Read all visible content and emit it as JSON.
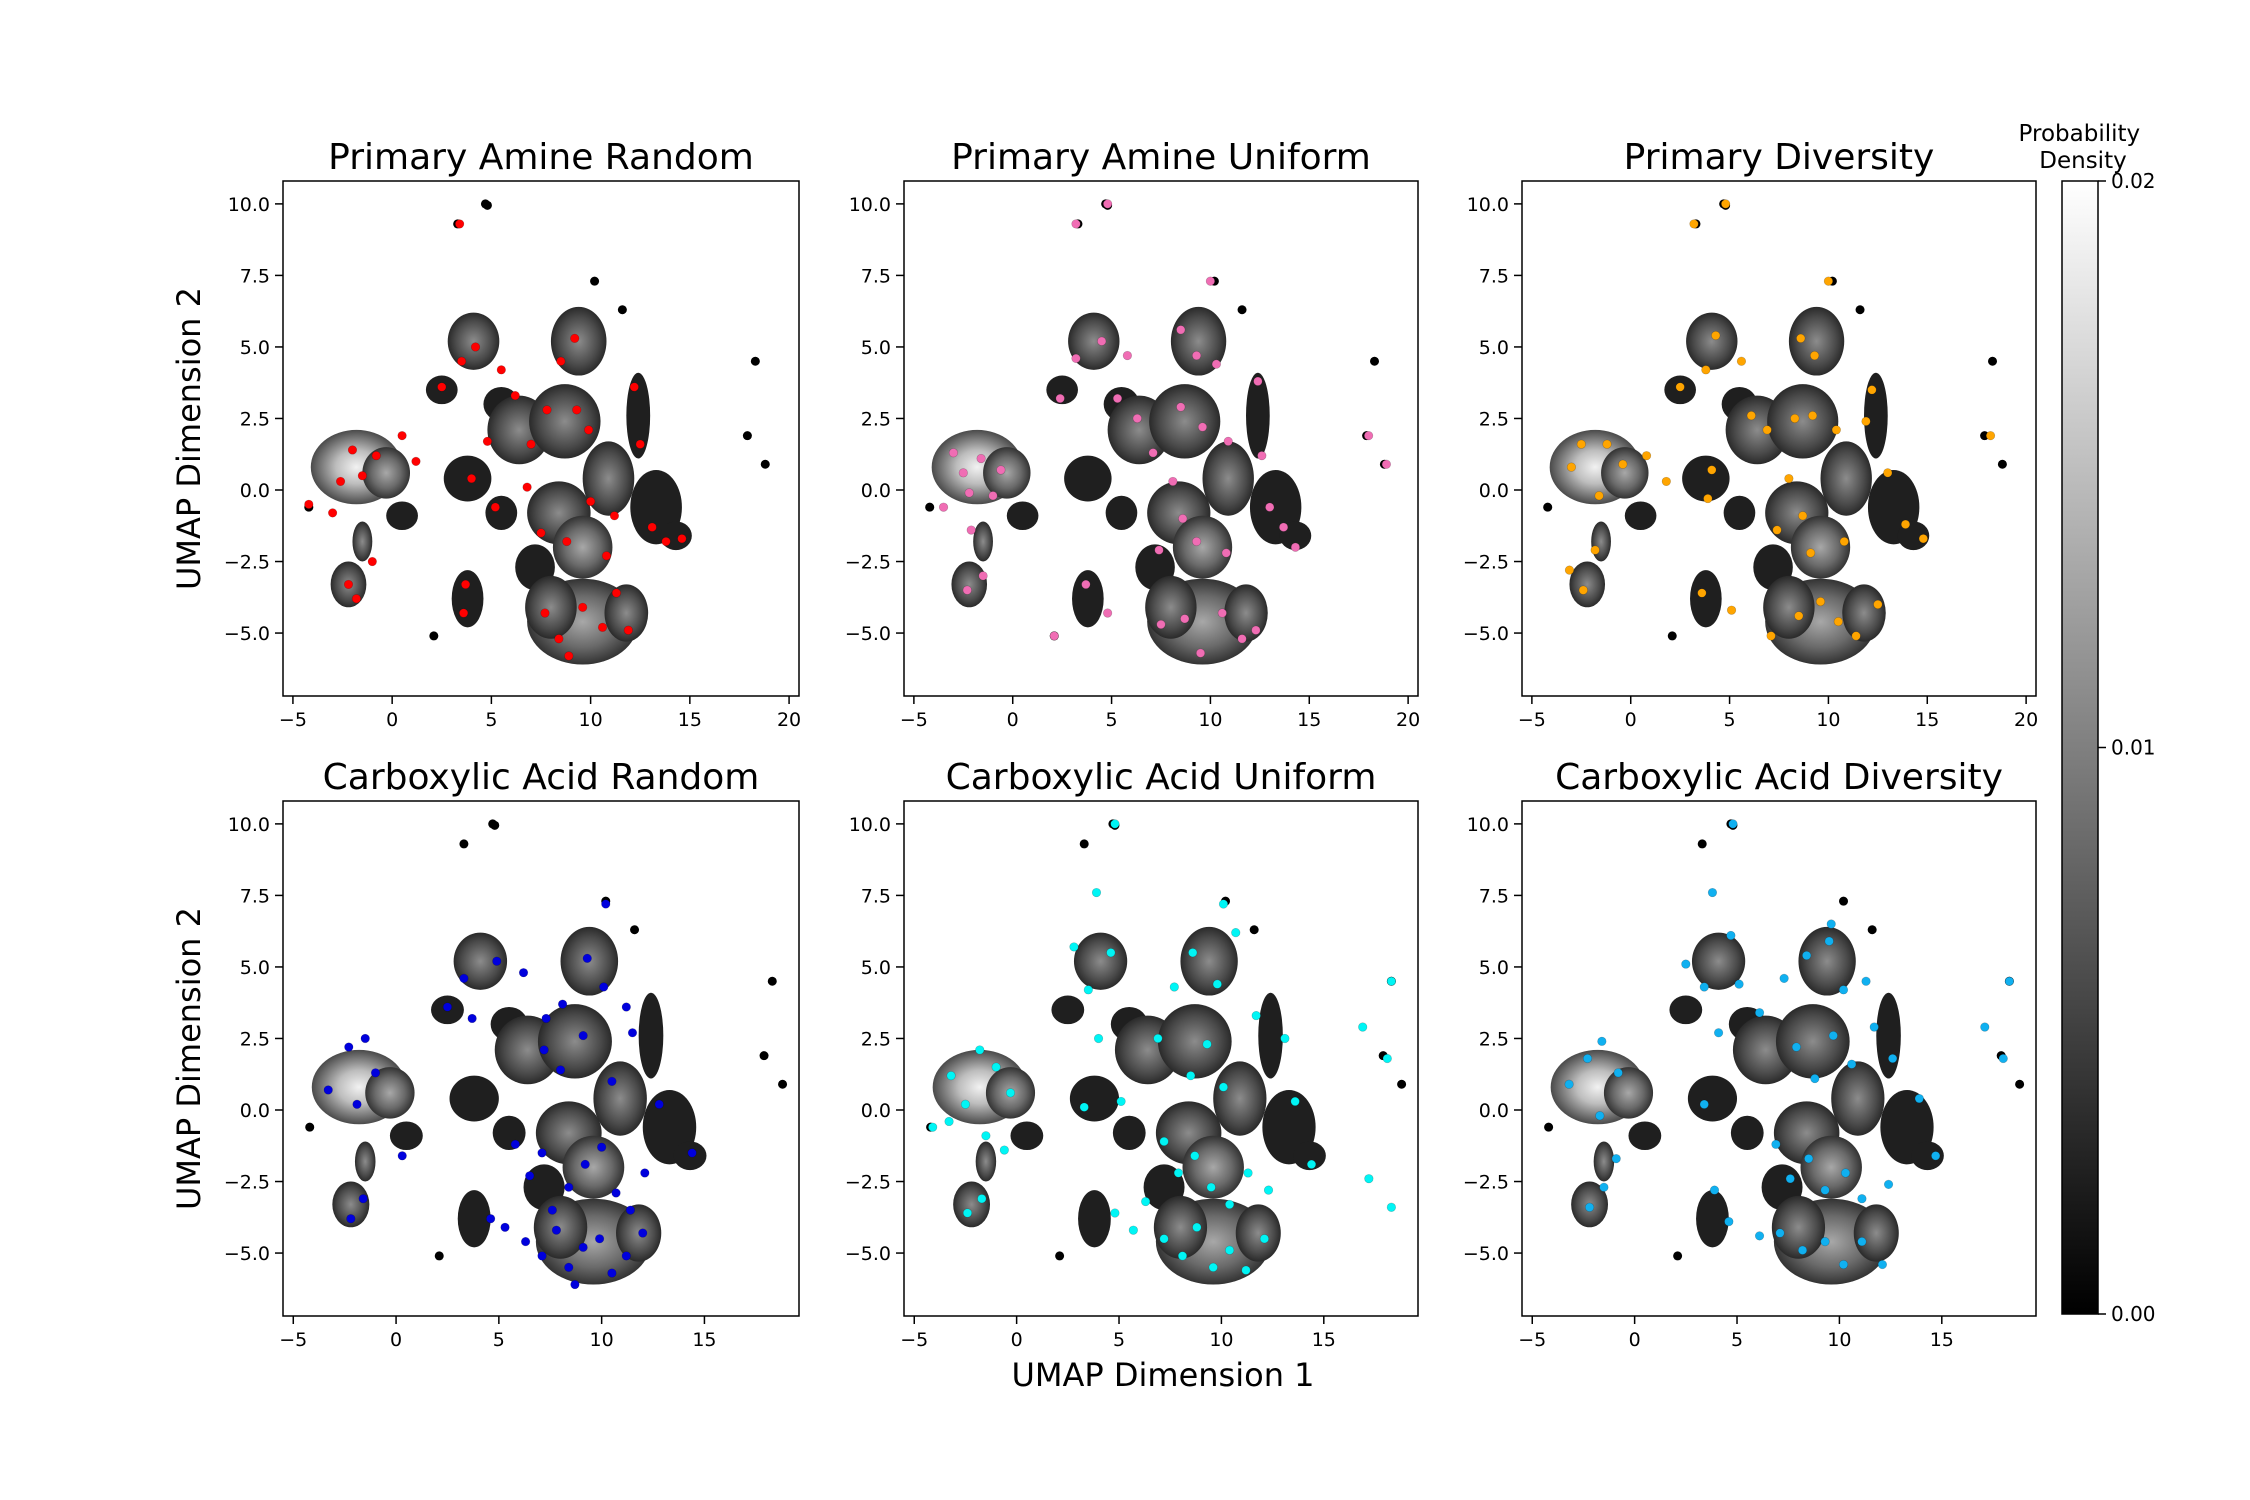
{
  "figure": {
    "xlabel": "UMAP Dimension 1",
    "ylabel": "UMAP Dimension 2",
    "colorbar": {
      "label": "Probability\nDensity",
      "ticks": [
        0.0,
        0.01,
        0.02
      ],
      "tick_labels": [
        "0.00",
        "0.01",
        "0.02"
      ],
      "range": [
        0.0,
        0.02
      ],
      "colormap": "gray"
    }
  },
  "chart_data": [
    {
      "type": "scatter",
      "title": "Primary Amine Random",
      "xlim": [
        -5.5,
        20.5
      ],
      "ylim": [
        -7.2,
        10.8
      ],
      "xticks": [
        -5,
        0,
        5,
        10,
        15,
        20
      ],
      "yticks": [
        -5.0,
        -2.5,
        0.0,
        2.5,
        5.0,
        7.5,
        10.0
      ],
      "ytick_labels": [
        "−5.0",
        "−2.5",
        "0.0",
        "2.5",
        "5.0",
        "7.5",
        "10.0"
      ],
      "xtick_labels": [
        "−5",
        "0",
        "5",
        "10",
        "15",
        "20"
      ],
      "show_ylabel": true,
      "show_xlabel": false,
      "highlight_color": "#ff0000",
      "sample_points": [
        [
          -2,
          1.4
        ],
        [
          -1.5,
          0.5
        ],
        [
          -2.6,
          0.3
        ],
        [
          -3,
          -0.8
        ],
        [
          -0.8,
          1.2
        ],
        [
          -2.2,
          -3.3
        ],
        [
          -1.8,
          -3.8
        ],
        [
          -1,
          -2.5
        ],
        [
          0.5,
          1.9
        ],
        [
          1.2,
          1
        ],
        [
          2.5,
          3.6
        ],
        [
          3.5,
          4.5
        ],
        [
          4.2,
          5
        ],
        [
          5.5,
          4.2
        ],
        [
          6.2,
          3.3
        ],
        [
          4.8,
          1.7
        ],
        [
          4,
          0.4
        ],
        [
          5.2,
          -0.6
        ],
        [
          7,
          1.6
        ],
        [
          7.8,
          2.8
        ],
        [
          8.5,
          4.5
        ],
        [
          9.2,
          5.3
        ],
        [
          9.9,
          2.1
        ],
        [
          10,
          -0.4
        ],
        [
          11.2,
          -0.9
        ],
        [
          8.8,
          -1.8
        ],
        [
          7.5,
          -1.5
        ],
        [
          10.8,
          -2.3
        ],
        [
          12.2,
          3.6
        ],
        [
          12.5,
          1.6
        ],
        [
          13.1,
          -1.3
        ],
        [
          13.8,
          -1.8
        ],
        [
          14.6,
          -1.7
        ],
        [
          3.7,
          -3.3
        ],
        [
          3.6,
          -4.3
        ],
        [
          7.7,
          -4.3
        ],
        [
          8.4,
          -5.2
        ],
        [
          9.6,
          -4.1
        ],
        [
          10.6,
          -4.8
        ],
        [
          11.9,
          -4.9
        ],
        [
          11.3,
          -3.6
        ],
        [
          8.9,
          -5.8
        ],
        [
          -4.2,
          -0.5
        ],
        [
          3.4,
          9.3
        ],
        [
          6.8,
          0.1
        ],
        [
          9.3,
          2.8
        ]
      ]
    },
    {
      "type": "scatter",
      "title": "Primary Amine Uniform",
      "xlim": [
        -5.5,
        20.5
      ],
      "ylim": [
        -7.2,
        10.8
      ],
      "xticks": [
        -5,
        0,
        5,
        10,
        15,
        20
      ],
      "yticks": [
        -5.0,
        -2.5,
        0.0,
        2.5,
        5.0,
        7.5,
        10.0
      ],
      "ytick_labels": [
        "−5.0",
        "−2.5",
        "0.0",
        "2.5",
        "5.0",
        "7.5",
        "10.0"
      ],
      "xtick_labels": [
        "−5",
        "0",
        "5",
        "10",
        "15",
        "20"
      ],
      "show_ylabel": false,
      "show_xlabel": false,
      "highlight_color": "#f06db4",
      "sample_points": [
        [
          -3,
          1.3
        ],
        [
          -2.5,
          0.6
        ],
        [
          -1.6,
          1.1
        ],
        [
          -0.6,
          0.7
        ],
        [
          -2.2,
          -0.1
        ],
        [
          -1,
          -0.2
        ],
        [
          -3.5,
          -0.6
        ],
        [
          -2.1,
          -1.4
        ],
        [
          -2.3,
          -3.5
        ],
        [
          -1.5,
          -3
        ],
        [
          2.4,
          3.2
        ],
        [
          3.2,
          4.6
        ],
        [
          4.5,
          5.2
        ],
        [
          5.8,
          4.7
        ],
        [
          5.3,
          3.2
        ],
        [
          6.3,
          2.5
        ],
        [
          7.1,
          1.3
        ],
        [
          8.1,
          0.3
        ],
        [
          8.5,
          2.9
        ],
        [
          9.6,
          2.2
        ],
        [
          10.9,
          1.7
        ],
        [
          8.5,
          5.6
        ],
        [
          9.3,
          4.7
        ],
        [
          10.3,
          4.4
        ],
        [
          12.4,
          3.8
        ],
        [
          12.6,
          1.2
        ],
        [
          13,
          -0.6
        ],
        [
          13.7,
          -1.3
        ],
        [
          14.3,
          -2
        ],
        [
          8.6,
          -1
        ],
        [
          9.3,
          -1.8
        ],
        [
          10.8,
          -2.2
        ],
        [
          7.4,
          -2.1
        ],
        [
          3.7,
          -3.3
        ],
        [
          4.8,
          -4.3
        ],
        [
          7.5,
          -4.7
        ],
        [
          8.7,
          -4.5
        ],
        [
          9.5,
          -5.7
        ],
        [
          10.6,
          -4.3
        ],
        [
          11.6,
          -5.2
        ],
        [
          12.3,
          -4.9
        ],
        [
          2.1,
          -5.1
        ],
        [
          18,
          1.9
        ],
        [
          18.9,
          0.9
        ],
        [
          3.2,
          9.3
        ],
        [
          4.8,
          10
        ],
        [
          10,
          7.3
        ]
      ]
    },
    {
      "type": "scatter",
      "title": "Primary Diversity",
      "xlim": [
        -5.5,
        20.5
      ],
      "ylim": [
        -7.2,
        10.8
      ],
      "xticks": [
        -5,
        0,
        5,
        10,
        15,
        20
      ],
      "yticks": [
        -5.0,
        -2.5,
        0.0,
        2.5,
        5.0,
        7.5,
        10.0
      ],
      "ytick_labels": [
        "−5.0",
        "−2.5",
        "0.0",
        "2.5",
        "5.0",
        "7.5",
        "10.0"
      ],
      "xtick_labels": [
        "−5",
        "0",
        "5",
        "10",
        "15",
        "20"
      ],
      "show_ylabel": false,
      "show_xlabel": false,
      "highlight_color": "#ffa500",
      "sample_points": [
        [
          -3,
          0.8
        ],
        [
          -2.5,
          1.6
        ],
        [
          -1.2,
          1.6
        ],
        [
          -0.4,
          0.9
        ],
        [
          -1.6,
          -0.2
        ],
        [
          -3.1,
          -2.8
        ],
        [
          -2.4,
          -3.5
        ],
        [
          -1.8,
          -2.1
        ],
        [
          0.8,
          1.2
        ],
        [
          1.8,
          0.3
        ],
        [
          2.5,
          3.6
        ],
        [
          3.8,
          4.2
        ],
        [
          4.3,
          5.4
        ],
        [
          5.6,
          4.5
        ],
        [
          6.1,
          2.6
        ],
        [
          4.1,
          0.7
        ],
        [
          3.9,
          -0.3
        ],
        [
          6.9,
          2.1
        ],
        [
          8.3,
          2.5
        ],
        [
          9.2,
          2.6
        ],
        [
          10.4,
          2.1
        ],
        [
          8.6,
          5.3
        ],
        [
          9.3,
          4.7
        ],
        [
          12.2,
          3.5
        ],
        [
          11.9,
          2.4
        ],
        [
          13,
          0.6
        ],
        [
          13.9,
          -1.2
        ],
        [
          14.8,
          -1.7
        ],
        [
          8,
          0.4
        ],
        [
          8.7,
          -0.9
        ],
        [
          9.1,
          -2.2
        ],
        [
          10.8,
          -1.8
        ],
        [
          7.4,
          -1.4
        ],
        [
          3.6,
          -3.6
        ],
        [
          5.1,
          -4.2
        ],
        [
          8.5,
          -4.4
        ],
        [
          9.6,
          -3.9
        ],
        [
          10.5,
          -4.6
        ],
        [
          11.4,
          -5.1
        ],
        [
          12.5,
          -4
        ],
        [
          7.1,
          -5.1
        ],
        [
          4.8,
          10
        ],
        [
          3.2,
          9.3
        ],
        [
          10,
          7.3
        ],
        [
          18.2,
          1.9
        ]
      ]
    },
    {
      "type": "scatter",
      "title": "Carboxylic Acid Random",
      "xlim": [
        -5.5,
        19.6
      ],
      "ylim": [
        -7.2,
        10.8
      ],
      "xticks": [
        -5,
        0,
        5,
        10,
        15
      ],
      "yticks": [
        -5.0,
        -2.5,
        0.0,
        2.5,
        5.0,
        7.5,
        10.0
      ],
      "ytick_labels": [
        "−5.0",
        "−2.5",
        "0.0",
        "2.5",
        "5.0",
        "7.5",
        "10.0"
      ],
      "xtick_labels": [
        "−5",
        "0",
        "5",
        "10",
        "15"
      ],
      "show_ylabel": true,
      "show_xlabel": false,
      "highlight_color": "#0000dd",
      "sample_points": [
        [
          -3.3,
          0.7
        ],
        [
          -2.3,
          2.2
        ],
        [
          -1.5,
          2.5
        ],
        [
          -1,
          1.3
        ],
        [
          -1.9,
          0.2
        ],
        [
          -2.2,
          -3.8
        ],
        [
          -1.6,
          -3.1
        ],
        [
          0.3,
          -1.6
        ],
        [
          2.5,
          3.6
        ],
        [
          3.3,
          4.6
        ],
        [
          3.7,
          3.2
        ],
        [
          4.9,
          5.2
        ],
        [
          6.2,
          4.8
        ],
        [
          7.3,
          3.2
        ],
        [
          8.1,
          3.7
        ],
        [
          9.3,
          5.3
        ],
        [
          10.1,
          4.3
        ],
        [
          10.2,
          7.2
        ],
        [
          11.2,
          3.6
        ],
        [
          7.2,
          2.1
        ],
        [
          8,
          1.4
        ],
        [
          9.1,
          2.6
        ],
        [
          10.5,
          1
        ],
        [
          11.5,
          2.7
        ],
        [
          12.8,
          0.2
        ],
        [
          14.4,
          -1.5
        ],
        [
          5.8,
          -1.2
        ],
        [
          6.5,
          -2.3
        ],
        [
          7.1,
          -1.5
        ],
        [
          7.6,
          -3.5
        ],
        [
          8.4,
          -2.7
        ],
        [
          9.2,
          -1.9
        ],
        [
          10,
          -1.3
        ],
        [
          10.7,
          -2.9
        ],
        [
          11.4,
          -3.5
        ],
        [
          4.6,
          -3.8
        ],
        [
          5.3,
          -4.1
        ],
        [
          6.3,
          -4.6
        ],
        [
          7.1,
          -5.1
        ],
        [
          7.8,
          -4.2
        ],
        [
          8.4,
          -5.5
        ],
        [
          9.1,
          -4.8
        ],
        [
          9.9,
          -4.5
        ],
        [
          10.5,
          -5.7
        ],
        [
          11.2,
          -5.1
        ],
        [
          12,
          -4.3
        ],
        [
          12.1,
          -2.2
        ],
        [
          8.7,
          -6.1
        ]
      ]
    },
    {
      "type": "scatter",
      "title": "Carboxylic Acid Uniform",
      "xlim": [
        -5.5,
        19.6
      ],
      "ylim": [
        -7.2,
        10.8
      ],
      "xticks": [
        -5,
        0,
        5,
        10,
        15
      ],
      "yticks": [
        -5.0,
        -2.5,
        0.0,
        2.5,
        5.0,
        7.5,
        10.0
      ],
      "ytick_labels": [
        "−5.0",
        "−2.5",
        "0.0",
        "2.5",
        "5.0",
        "7.5",
        "10.0"
      ],
      "xtick_labels": [
        "−5",
        "0",
        "5",
        "10",
        "15"
      ],
      "show_ylabel": false,
      "show_xlabel": true,
      "highlight_color": "#00f5f5",
      "sample_points": [
        [
          -3.2,
          1.2
        ],
        [
          -2.5,
          0.2
        ],
        [
          -1.8,
          2.1
        ],
        [
          -1,
          1.5
        ],
        [
          -0.3,
          0.6
        ],
        [
          -1.5,
          -0.9
        ],
        [
          -3.3,
          -0.4
        ],
        [
          -2.4,
          -3.6
        ],
        [
          -1.7,
          -3.1
        ],
        [
          -0.6,
          -1.4
        ],
        [
          2.8,
          5.7
        ],
        [
          3.5,
          4.2
        ],
        [
          4.6,
          5.5
        ],
        [
          4,
          2.5
        ],
        [
          5.1,
          0.3
        ],
        [
          3.3,
          0.1
        ],
        [
          6.9,
          2.5
        ],
        [
          7.7,
          4.3
        ],
        [
          8.6,
          5.5
        ],
        [
          9.8,
          4.4
        ],
        [
          10.7,
          6.2
        ],
        [
          8.5,
          1.2
        ],
        [
          9.3,
          2.3
        ],
        [
          10.1,
          0.8
        ],
        [
          11.7,
          3.3
        ],
        [
          13.1,
          2.5
        ],
        [
          13.6,
          0.3
        ],
        [
          14.4,
          -1.9
        ],
        [
          7.2,
          -1.1
        ],
        [
          7.9,
          -2.2
        ],
        [
          8.7,
          -1.6
        ],
        [
          9.5,
          -2.7
        ],
        [
          10.4,
          -3.3
        ],
        [
          11.3,
          -2.2
        ],
        [
          12.3,
          -2.8
        ],
        [
          4.8,
          -3.6
        ],
        [
          5.7,
          -4.2
        ],
        [
          6.3,
          -3.2
        ],
        [
          7.2,
          -4.5
        ],
        [
          8.1,
          -5.1
        ],
        [
          8.8,
          -4.1
        ],
        [
          9.6,
          -5.5
        ],
        [
          10.4,
          -4.9
        ],
        [
          11.2,
          -5.6
        ],
        [
          12.1,
          -4.5
        ],
        [
          3.9,
          7.6
        ],
        [
          4.8,
          10
        ],
        [
          10.1,
          7.2
        ],
        [
          16.9,
          2.9
        ],
        [
          18.1,
          1.8
        ],
        [
          18.3,
          -3.4
        ],
        [
          18.3,
          4.5
        ],
        [
          -4.1,
          -0.6
        ],
        [
          17.2,
          -2.4
        ]
      ]
    },
    {
      "type": "scatter",
      "title": "Carboxylic Acid Diversity",
      "xlim": [
        -5.5,
        19.6
      ],
      "ylim": [
        -7.2,
        10.8
      ],
      "xticks": [
        -5,
        0,
        5,
        10,
        15
      ],
      "yticks": [
        -5.0,
        -2.5,
        0.0,
        2.5,
        5.0,
        7.5,
        10.0
      ],
      "ytick_labels": [
        "−5.0",
        "−2.5",
        "0.0",
        "2.5",
        "5.0",
        "7.5",
        "10.0"
      ],
      "xtick_labels": [
        "−5",
        "0",
        "5",
        "10",
        "15"
      ],
      "show_ylabel": false,
      "show_xlabel": false,
      "highlight_color": "#10b0f0",
      "sample_points": [
        [
          -3.2,
          0.9
        ],
        [
          -2.3,
          1.8
        ],
        [
          -1.6,
          2.4
        ],
        [
          -0.8,
          1.3
        ],
        [
          -1.7,
          -0.2
        ],
        [
          -2.2,
          -3.4
        ],
        [
          -1.5,
          -2.7
        ],
        [
          -0.9,
          -1.7
        ],
        [
          2.5,
          5.1
        ],
        [
          3.4,
          4.3
        ],
        [
          4.7,
          6.1
        ],
        [
          5.1,
          4.4
        ],
        [
          4.1,
          2.7
        ],
        [
          3.4,
          0.2
        ],
        [
          6.1,
          3.4
        ],
        [
          7.3,
          4.6
        ],
        [
          8.4,
          5.4
        ],
        [
          9.5,
          5.9
        ],
        [
          10.2,
          4.2
        ],
        [
          11.3,
          4.5
        ],
        [
          7.9,
          2.2
        ],
        [
          8.8,
          1.1
        ],
        [
          9.7,
          2.6
        ],
        [
          10.6,
          1.6
        ],
        [
          11.7,
          2.9
        ],
        [
          12.6,
          1.8
        ],
        [
          13.9,
          0.4
        ],
        [
          14.7,
          -1.6
        ],
        [
          6.9,
          -1.2
        ],
        [
          7.6,
          -2.4
        ],
        [
          8.5,
          -1.7
        ],
        [
          9.3,
          -2.8
        ],
        [
          10.3,
          -2.2
        ],
        [
          11.1,
          -3.1
        ],
        [
          12.4,
          -2.6
        ],
        [
          3.9,
          -2.8
        ],
        [
          4.6,
          -3.9
        ],
        [
          6.1,
          -4.4
        ],
        [
          7.1,
          -4.3
        ],
        [
          8.2,
          -4.9
        ],
        [
          9.3,
          -4.6
        ],
        [
          10.2,
          -5.4
        ],
        [
          11.1,
          -4.6
        ],
        [
          12.1,
          -5.4
        ],
        [
          3.8,
          7.6
        ],
        [
          4.8,
          10
        ],
        [
          9.6,
          6.5
        ],
        [
          18.3,
          4.5
        ],
        [
          17.1,
          2.9
        ],
        [
          18,
          1.8
        ]
      ]
    }
  ]
}
